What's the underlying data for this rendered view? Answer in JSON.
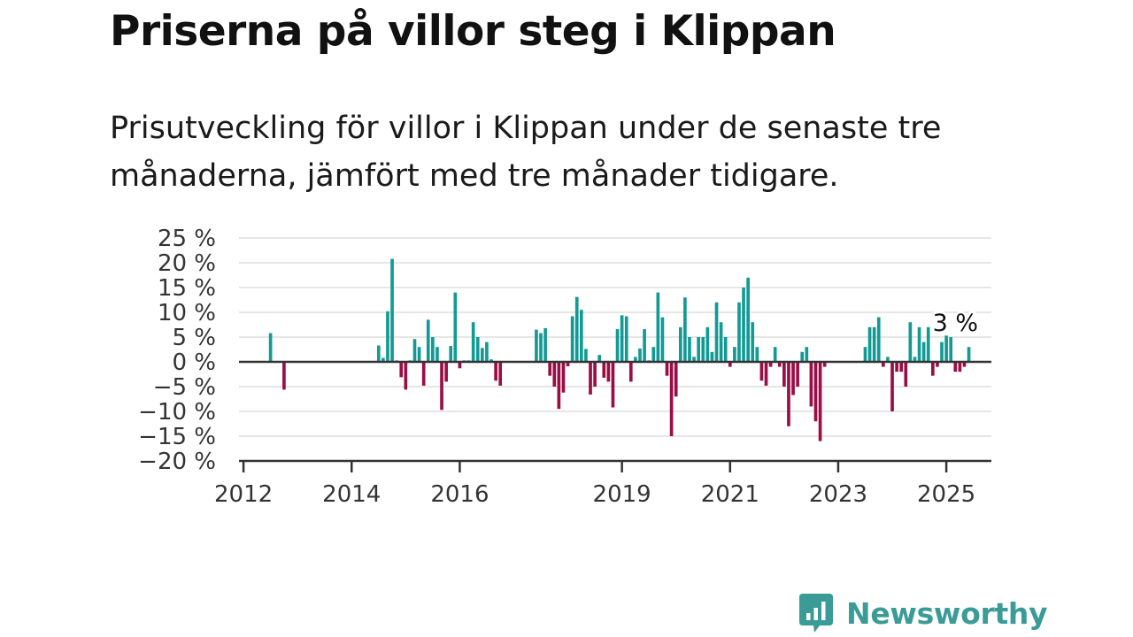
{
  "title": "Priserna på villor steg i Klippan",
  "subtitle": "Prisutveckling för villor i Klippan under de senaste tre månaderna, jämfört med tre månader tidigare.",
  "logo": {
    "text": "Newsworthy",
    "icon": "newsworthy-chat-bars-icon"
  },
  "colors": {
    "positive": "#139a94",
    "negative": "#9a0d45",
    "grid": "#dddddd",
    "axis": "#333333",
    "logo": "#3b9b96"
  },
  "chart_data": {
    "type": "bar",
    "title": "Priserna på villor steg i Klippan",
    "xlabel": "",
    "ylabel": "",
    "x_unit": "month",
    "xlim": [
      "2011-12",
      "2025-11"
    ],
    "ylim": [
      -20,
      25
    ],
    "y_ticks": [
      -20,
      -15,
      -10,
      -5,
      0,
      5,
      10,
      15,
      20,
      25
    ],
    "y_tick_labels": [
      "−20 %",
      "−15 %",
      "−10 %",
      "−5 %",
      "0 %",
      "5 %",
      "10 %",
      "15 %",
      "20 %",
      "25 %"
    ],
    "x_ticks": [
      "2012-01",
      "2014-01",
      "2016-01",
      "2019-01",
      "2021-01",
      "2023-01",
      "2025-01"
    ],
    "x_tick_labels": [
      "2012",
      "2014",
      "2016",
      "2019",
      "2021",
      "2023",
      "2025"
    ],
    "grid": true,
    "annotation": {
      "text": "3 %",
      "at": "2025-03"
    },
    "series": [
      {
        "values": [
          [
            "2012-07",
            5.8
          ],
          [
            "2012-10",
            -5.6
          ],
          [
            "2014-07",
            3.3
          ],
          [
            "2014-08",
            0.8
          ],
          [
            "2014-09",
            10.2
          ],
          [
            "2014-10",
            20.8
          ],
          [
            "2014-11",
            0.3
          ],
          [
            "2014-12",
            -3.1
          ],
          [
            "2015-01",
            -5.6
          ],
          [
            "2015-02",
            0.3
          ],
          [
            "2015-03",
            4.6
          ],
          [
            "2015-04",
            3.0
          ],
          [
            "2015-05",
            -4.8
          ],
          [
            "2015-06",
            8.5
          ],
          [
            "2015-07",
            5.0
          ],
          [
            "2015-08",
            3.0
          ],
          [
            "2015-09",
            -9.7
          ],
          [
            "2015-10",
            -4.0
          ],
          [
            "2015-11",
            3.2
          ],
          [
            "2015-12",
            14.0
          ],
          [
            "2016-01",
            -1.3
          ],
          [
            "2016-02",
            0.3
          ],
          [
            "2016-03",
            0.3
          ],
          [
            "2016-04",
            8.0
          ],
          [
            "2016-05",
            5.0
          ],
          [
            "2016-06",
            2.8
          ],
          [
            "2016-07",
            4.0
          ],
          [
            "2016-08",
            0.5
          ],
          [
            "2016-09",
            -3.8
          ],
          [
            "2016-10",
            -4.8
          ],
          [
            "2017-06",
            6.5
          ],
          [
            "2017-07",
            5.8
          ],
          [
            "2017-08",
            6.8
          ],
          [
            "2017-09",
            -2.8
          ],
          [
            "2017-10",
            -5.0
          ],
          [
            "2017-11",
            -9.5
          ],
          [
            "2017-12",
            -6.2
          ],
          [
            "2018-01",
            -0.9
          ],
          [
            "2018-02",
            9.2
          ],
          [
            "2018-03",
            13.1
          ],
          [
            "2018-04",
            10.5
          ],
          [
            "2018-05",
            2.6
          ],
          [
            "2018-06",
            -6.6
          ],
          [
            "2018-07",
            -5.0
          ],
          [
            "2018-08",
            1.4
          ],
          [
            "2018-09",
            -3.2
          ],
          [
            "2018-10",
            -4.0
          ],
          [
            "2018-11",
            -9.2
          ],
          [
            "2018-12",
            6.6
          ],
          [
            "2019-01",
            9.4
          ],
          [
            "2019-02",
            9.2
          ],
          [
            "2019-03",
            -4.0
          ],
          [
            "2019-04",
            1.0
          ],
          [
            "2019-05",
            2.7
          ],
          [
            "2019-06",
            6.6
          ],
          [
            "2019-07",
            0.3
          ],
          [
            "2019-08",
            3.0
          ],
          [
            "2019-09",
            14.0
          ],
          [
            "2019-10",
            9.0
          ],
          [
            "2019-11",
            -2.8
          ],
          [
            "2019-12",
            -15.0
          ],
          [
            "2020-01",
            -7.0
          ],
          [
            "2020-02",
            7.0
          ],
          [
            "2020-03",
            13.0
          ],
          [
            "2020-04",
            5.0
          ],
          [
            "2020-05",
            1.0
          ],
          [
            "2020-06",
            5.0
          ],
          [
            "2020-07",
            5.0
          ],
          [
            "2020-08",
            7.0
          ],
          [
            "2020-09",
            2.0
          ],
          [
            "2020-10",
            12.0
          ],
          [
            "2020-11",
            8.0
          ],
          [
            "2020-12",
            5.0
          ],
          [
            "2021-01",
            -1.0
          ],
          [
            "2021-02",
            3.0
          ],
          [
            "2021-03",
            12.0
          ],
          [
            "2021-04",
            15.0
          ],
          [
            "2021-05",
            17.0
          ],
          [
            "2021-06",
            8.0
          ],
          [
            "2021-07",
            3.0
          ],
          [
            "2021-08",
            -3.8
          ],
          [
            "2021-09",
            -4.8
          ],
          [
            "2021-10",
            -1.0
          ],
          [
            "2021-11",
            3.0
          ],
          [
            "2021-12",
            -1.0
          ],
          [
            "2022-01",
            -5.0
          ],
          [
            "2022-02",
            -13.0
          ],
          [
            "2022-03",
            -6.7
          ],
          [
            "2022-04",
            -5.0
          ],
          [
            "2022-05",
            2.0
          ],
          [
            "2022-06",
            3.0
          ],
          [
            "2022-07",
            -9.0
          ],
          [
            "2022-08",
            -12.0
          ],
          [
            "2022-09",
            -16.0
          ],
          [
            "2022-10",
            -1.0
          ],
          [
            "2023-07",
            3.0
          ],
          [
            "2023-08",
            7.0
          ],
          [
            "2023-09",
            7.0
          ],
          [
            "2023-10",
            9.0
          ],
          [
            "2023-11",
            -1.0
          ],
          [
            "2023-12",
            1.0
          ],
          [
            "2024-01",
            -10.0
          ],
          [
            "2024-02",
            -2.0
          ],
          [
            "2024-03",
            -2.0
          ],
          [
            "2024-04",
            -5.0
          ],
          [
            "2024-05",
            8.0
          ],
          [
            "2024-06",
            1.0
          ],
          [
            "2024-07",
            7.0
          ],
          [
            "2024-08",
            4.0
          ],
          [
            "2024-09",
            7.0
          ],
          [
            "2024-10",
            -2.8
          ],
          [
            "2024-11",
            -1.0
          ],
          [
            "2024-12",
            4.0
          ],
          [
            "2025-01",
            5.3
          ],
          [
            "2025-02",
            5.0
          ],
          [
            "2025-03",
            -2.0
          ],
          [
            "2025-04",
            -2.0
          ],
          [
            "2025-05",
            -1.0
          ],
          [
            "2025-06",
            3.0
          ]
        ]
      }
    ]
  }
}
